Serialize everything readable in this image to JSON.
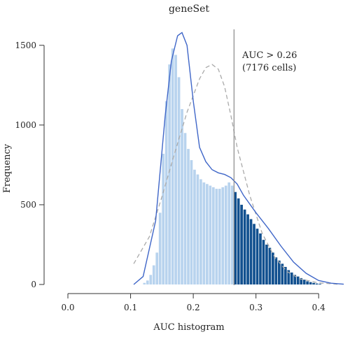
{
  "chart_data": {
    "type": "bar",
    "title": "geneSet",
    "xlabel": "AUC histogram",
    "ylabel": "Frequency",
    "xlim": [
      0.0,
      0.45
    ],
    "ylim": [
      0,
      1600
    ],
    "x_ticks": [
      "0.0",
      "0.1",
      "0.2",
      "0.3",
      "0.4"
    ],
    "x_tick_values": [
      0.0,
      0.1,
      0.2,
      0.3,
      0.4
    ],
    "y_ticks": [
      "0",
      "500",
      "1000",
      "1500"
    ],
    "y_tick_values": [
      0,
      500,
      1000,
      1500
    ],
    "threshold": 0.265,
    "annotation": [
      "AUC > 0.26",
      "(7176 cells)"
    ],
    "bin_width": 0.005,
    "bins_start": 0.12,
    "histogram_values": [
      10,
      25,
      60,
      120,
      200,
      450,
      820,
      1150,
      1380,
      1480,
      1440,
      1300,
      1100,
      950,
      850,
      780,
      720,
      690,
      660,
      640,
      630,
      620,
      610,
      600,
      600,
      610,
      620,
      640,
      620,
      580,
      540,
      500,
      470,
      440,
      410,
      380,
      350,
      320,
      280,
      250,
      230,
      200,
      170,
      150,
      130,
      110,
      90,
      75,
      60,
      50,
      40,
      30,
      20,
      15,
      10,
      6,
      4
    ],
    "density_solid": {
      "x": [
        0.105,
        0.12,
        0.14,
        0.155,
        0.165,
        0.175,
        0.182,
        0.19,
        0.2,
        0.21,
        0.22,
        0.23,
        0.24,
        0.25,
        0.26,
        0.27,
        0.28,
        0.3,
        0.32,
        0.34,
        0.36,
        0.38,
        0.4,
        0.42,
        0.44
      ],
      "y": [
        0,
        50,
        400,
        1050,
        1400,
        1560,
        1580,
        1500,
        1150,
        860,
        770,
        720,
        700,
        690,
        670,
        630,
        560,
        450,
        350,
        240,
        140,
        70,
        25,
        8,
        2
      ]
    },
    "density_dashed": {
      "x": [
        0.105,
        0.13,
        0.15,
        0.17,
        0.19,
        0.21,
        0.22,
        0.23,
        0.24,
        0.25,
        0.26,
        0.27,
        0.29,
        0.31,
        0.33,
        0.35,
        0.37,
        0.4,
        0.43
      ],
      "y": [
        130,
        300,
        550,
        820,
        1080,
        1290,
        1360,
        1380,
        1350,
        1240,
        1060,
        860,
        560,
        320,
        170,
        80,
        35,
        10,
        2
      ]
    },
    "colors": {
      "bar_below": "#b8d3ee",
      "bar_above": "#11508f",
      "density_solid": "#3f66c8",
      "density_dashed": "#aaaaaa",
      "threshold_line": "#888888",
      "axis": "#333333"
    }
  }
}
